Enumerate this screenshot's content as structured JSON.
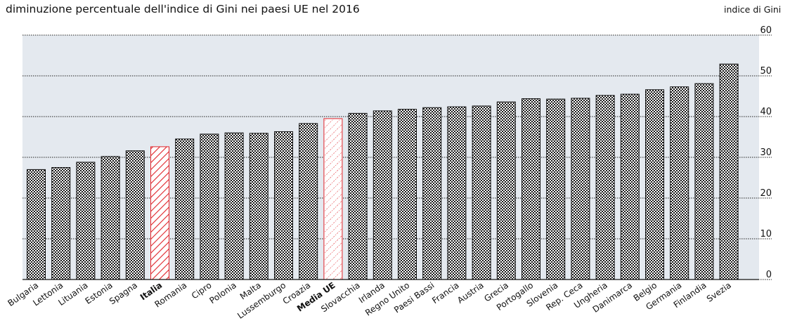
{
  "chart_data": {
    "type": "bar",
    "title": "diminuzione percentuale dell'indice di Gini nei paesi UE nel 2016",
    "ylabel": "indice di Gini",
    "ylim": [
      0,
      60
    ],
    "yticks": [
      0,
      10,
      20,
      30,
      40,
      50,
      60
    ],
    "grid": true,
    "categories": [
      "Bulgaria",
      "Lettonia",
      "Lituania",
      "Estonia",
      "Spagna",
      "Italia",
      "Romania",
      "Cipro",
      "Polonia",
      "Malta",
      "Lussemburgo",
      "Croazia",
      "Media UE",
      "Slovacchia",
      "Irlanda",
      "Regno Unito",
      "Paesi Bassi",
      "Francia",
      "Austria",
      "Grecia",
      "Portogallo",
      "Slovenia",
      "Rep. Ceca",
      "Ungheria",
      "Danimarca",
      "Belgio",
      "Germania",
      "Finlandia",
      "Svezia"
    ],
    "values": [
      27,
      27.5,
      28.8,
      30.2,
      31.6,
      32.6,
      34.5,
      35.7,
      36,
      35.9,
      36.3,
      38.3,
      39.5,
      40.8,
      41.4,
      41.8,
      42.2,
      42.4,
      42.6,
      43.6,
      44.4,
      44.3,
      44.5,
      45.2,
      45.5,
      46.6,
      47.3,
      48.1,
      52.9
    ],
    "highlight": [
      "Italia",
      "Media UE"
    ],
    "colors": {
      "plot_background": "#e4e9ef",
      "bar_pattern": "#1a1a1a",
      "highlight_hatch": "#e0242a",
      "highlight_fill": "#ffffff"
    }
  }
}
